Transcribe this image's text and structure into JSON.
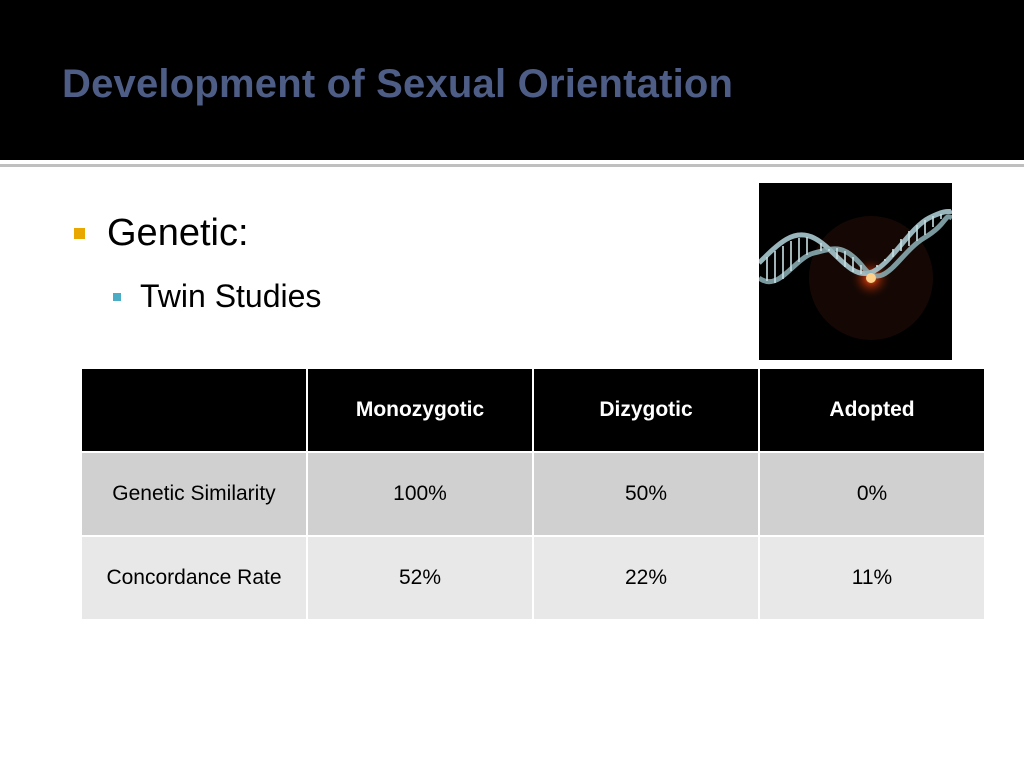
{
  "slide": {
    "title": "Development of Sexual Orientation",
    "bullets": [
      {
        "text": "Genetic:",
        "level": 1,
        "marker_color": "#e8a800"
      },
      {
        "text": "Twin Studies",
        "level": 2,
        "marker_color": "#4bacc6"
      }
    ],
    "image": {
      "name": "dna-helix-icon"
    }
  },
  "table": {
    "headers": [
      "",
      "Monozygotic",
      "Dizygotic",
      "Adopted"
    ],
    "rows": [
      {
        "label": "Genetic Similarity",
        "values": [
          "100%",
          "50%",
          "0%"
        ]
      },
      {
        "label": "Concordance Rate",
        "values": [
          "52%",
          "22%",
          "11%"
        ]
      }
    ]
  },
  "colors": {
    "title": "#4e5d86",
    "title_bar": "#000000",
    "header_row": "#000000",
    "row_a": "#d0d0d0",
    "row_b": "#e8e8e8"
  }
}
